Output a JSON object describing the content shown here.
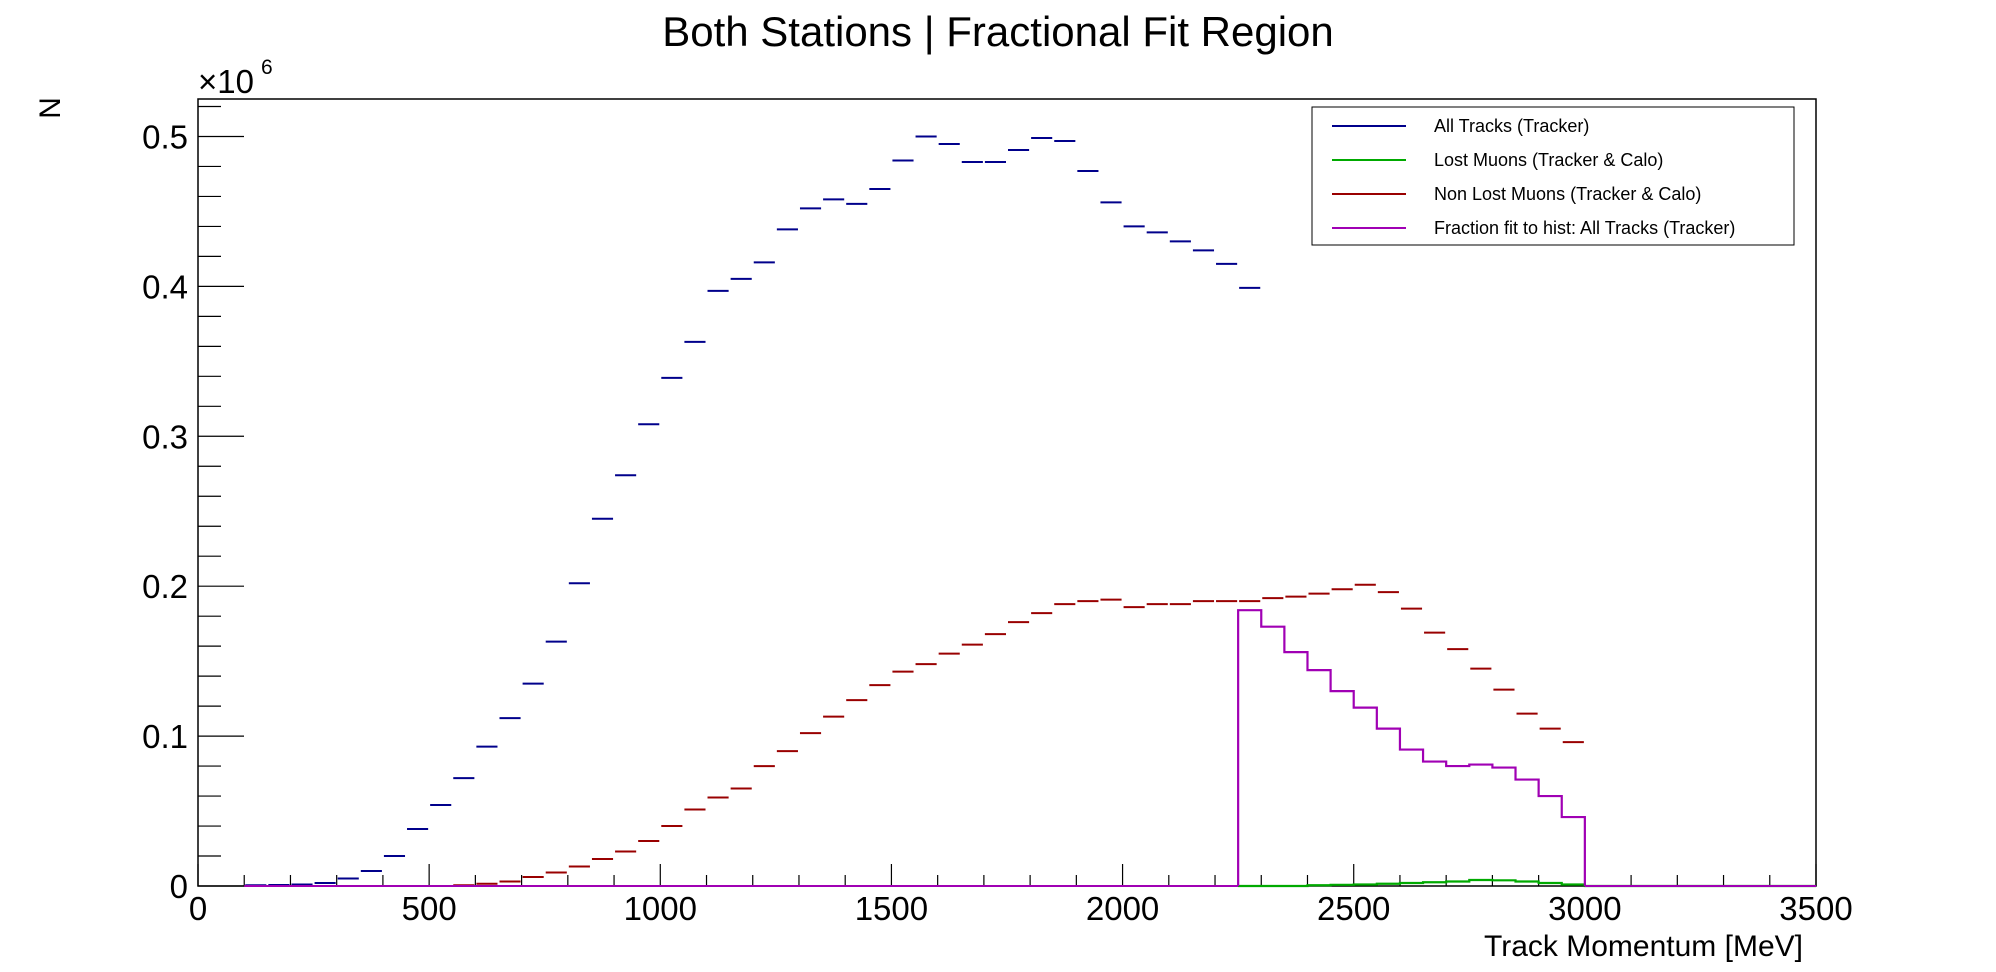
{
  "chart_data": {
    "type": "line",
    "title": "Both Stations | Fractional Fit Region",
    "xlabel": "Track Momentum [MeV]",
    "ylabel": "N",
    "y_scale_label": "×10",
    "y_scale_exponent": "6",
    "xlim": [
      0,
      3500
    ],
    "ylim": [
      0,
      0.525
    ],
    "x_ticks": [
      "0",
      "500",
      "1000",
      "1500",
      "2000",
      "2500",
      "3000",
      "3500"
    ],
    "y_ticks": [
      "0",
      "0.1",
      "0.2",
      "0.3",
      "0.4",
      "0.5"
    ],
    "y_tick_values": [
      0,
      0.1,
      0.2,
      0.3,
      0.4,
      0.5
    ],
    "x_tick_values": [
      0,
      500,
      1000,
      1500,
      2000,
      2500,
      3000,
      3500
    ],
    "bin_edges_range": [
      100,
      3500
    ],
    "bin_width": 50,
    "grid": false,
    "legend_position": "top-right",
    "series": [
      {
        "name": "All Tracks (Tracker)",
        "color": "#00008b",
        "style": "bin-markers",
        "x": [
          125,
          175,
          225,
          275,
          325,
          375,
          425,
          475,
          525,
          575,
          625,
          675,
          725,
          775,
          825,
          875,
          925,
          975,
          1025,
          1075,
          1125,
          1175,
          1225,
          1275,
          1325,
          1375,
          1425,
          1475,
          1525,
          1575,
          1625,
          1675,
          1725,
          1775,
          1825,
          1875,
          1925,
          1975,
          2025,
          2075,
          2125,
          2175,
          2225,
          2275
        ],
        "values": [
          0.0005,
          0.0007,
          0.001,
          0.002,
          0.005,
          0.01,
          0.02,
          0.038,
          0.054,
          0.072,
          0.093,
          0.112,
          0.135,
          0.163,
          0.202,
          0.245,
          0.274,
          0.308,
          0.339,
          0.363,
          0.397,
          0.405,
          0.416,
          0.438,
          0.452,
          0.458,
          0.455,
          0.465,
          0.484,
          0.5,
          0.495,
          0.483,
          0.483,
          0.491,
          0.499,
          0.497,
          0.477,
          0.456,
          0.44,
          0.436,
          0.43,
          0.424,
          0.415,
          0.399
        ]
      },
      {
        "name": "Lost Muons (Tracker & Calo)",
        "color": "#00aa00",
        "style": "step",
        "x": [
          2275,
          2325,
          2375,
          2425,
          2475,
          2525,
          2575,
          2625,
          2675,
          2725,
          2775,
          2825,
          2875,
          2925,
          2975,
          3025,
          3075,
          3125,
          3175,
          3225,
          3275,
          3325,
          3375,
          3425,
          3475
        ],
        "values": [
          0.0,
          0.0,
          0.0,
          0.0005,
          0.0008,
          0.001,
          0.0015,
          0.002,
          0.0025,
          0.003,
          0.004,
          0.0038,
          0.003,
          0.002,
          0.001,
          0.0,
          0.0,
          0.0,
          0.0,
          0.0,
          0.0,
          0.0,
          0.0,
          0.0,
          0.0
        ]
      },
      {
        "name": "Non Lost Muons (Tracker & Calo)",
        "color": "#990000",
        "style": "bin-markers",
        "x": [
          525,
          575,
          625,
          675,
          725,
          775,
          825,
          875,
          925,
          975,
          1025,
          1075,
          1125,
          1175,
          1225,
          1275,
          1325,
          1375,
          1425,
          1475,
          1525,
          1575,
          1625,
          1675,
          1725,
          1775,
          1825,
          1875,
          1925,
          1975,
          2025,
          2075,
          2125,
          2175,
          2225,
          2275,
          2325,
          2375,
          2425,
          2475,
          2525,
          2575,
          2625,
          2675,
          2725,
          2775,
          2825,
          2875,
          2925,
          2975
        ],
        "values": [
          0.0,
          0.0005,
          0.0015,
          0.003,
          0.006,
          0.009,
          0.013,
          0.018,
          0.023,
          0.03,
          0.04,
          0.051,
          0.059,
          0.065,
          0.08,
          0.09,
          0.102,
          0.113,
          0.124,
          0.134,
          0.143,
          0.148,
          0.155,
          0.161,
          0.168,
          0.176,
          0.182,
          0.188,
          0.19,
          0.191,
          0.186,
          0.188,
          0.188,
          0.19,
          0.19,
          0.19,
          0.192,
          0.193,
          0.195,
          0.198,
          0.201,
          0.196,
          0.185,
          0.169,
          0.158,
          0.145,
          0.131,
          0.115,
          0.105,
          0.096
        ]
      },
      {
        "name": "Fraction fit to hist: All Tracks (Tracker)",
        "color": "#a000b4",
        "style": "step",
        "x": [
          2275,
          2325,
          2375,
          2425,
          2475,
          2525,
          2575,
          2625,
          2675,
          2725,
          2775,
          2825,
          2875,
          2925,
          2975
        ],
        "values": [
          0.184,
          0.173,
          0.156,
          0.144,
          0.13,
          0.119,
          0.105,
          0.091,
          0.083,
          0.08,
          0.081,
          0.079,
          0.071,
          0.06,
          0.046
        ]
      }
    ]
  }
}
